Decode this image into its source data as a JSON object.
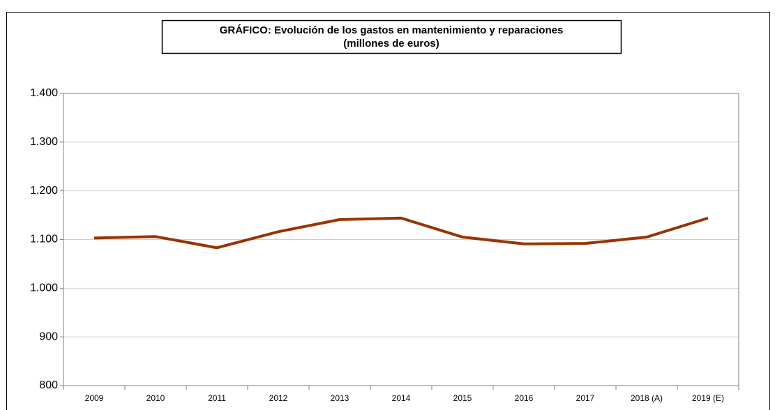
{
  "chart_data": {
    "type": "line",
    "title": "GRÁFICO: Evolución de los gastos en mantenimiento y reparaciones",
    "subtitle": "(millones de euros)",
    "categories": [
      "2009",
      "2010",
      "2011",
      "2012",
      "2013",
      "2014",
      "2015",
      "2016",
      "2017",
      "2018 (A)",
      "2019 (E)"
    ],
    "values": [
      1103,
      1106,
      1083,
      1116,
      1141,
      1144,
      1105,
      1091,
      1092,
      1105,
      1144
    ],
    "color": "#993300",
    "ylim": [
      800,
      1400
    ],
    "yticks": [
      800,
      900,
      {
        "value": 1000,
        "label": "1.000"
      },
      {
        "value": 1100,
        "label": "1.100"
      },
      {
        "value": 1200,
        "label": "1.200"
      },
      {
        "value": 1300,
        "label": "1.300"
      },
      {
        "value": 1400,
        "label": "1.400"
      }
    ],
    "grid": true
  }
}
